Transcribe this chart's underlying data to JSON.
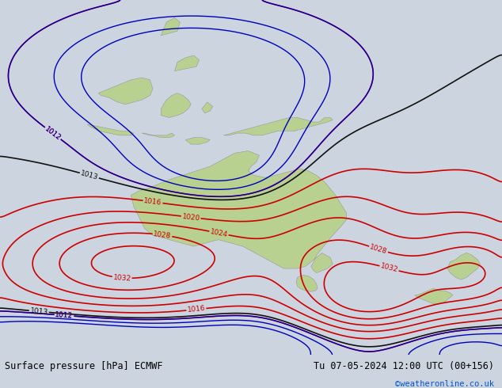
{
  "title_left": "Surface pressure [hPa] ECMWF",
  "title_right": "Tu 07-05-2024 12:00 UTC (00+156)",
  "credit": "©weatheronline.co.uk",
  "background_color": "#ccd4e0",
  "land_color": "#b8d090",
  "land_edge_color": "#999999",
  "fig_width": 6.34,
  "fig_height": 4.9,
  "dpi": 100,
  "bottom_bar_color": "#ffffff",
  "contour_color_red": "#cc0000",
  "contour_color_blue": "#0000bb",
  "contour_color_black": "#111111",
  "label_fontsize": 6.5,
  "title_fontsize": 8.5,
  "credit_fontsize": 7.5,
  "credit_color": "#0055cc",
  "lon_min": 90,
  "lon_max": 182,
  "lat_min": -58,
  "lat_max": 22
}
